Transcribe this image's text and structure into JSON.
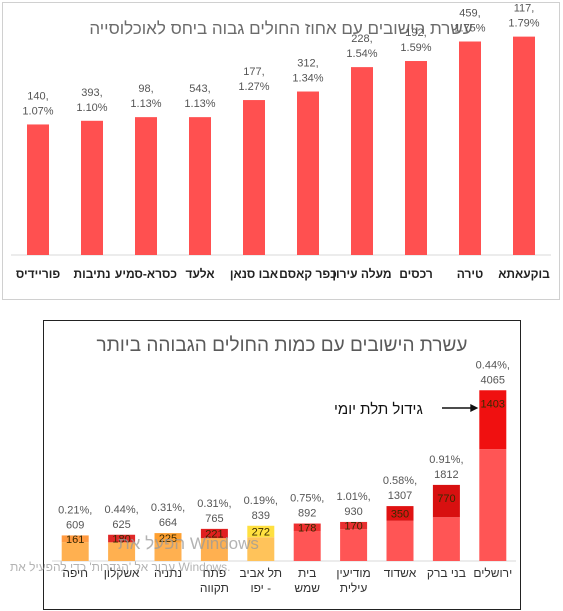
{
  "charts": [
    {
      "type": "bar",
      "title": "עשרת הישובים עם אחוז החולים גבוה ביחס לאוכלוסייה",
      "categories": [
        "בוקעאתא",
        "טירה",
        "רכסים",
        "מעלה עירון",
        "כפר קאסם",
        "אבו סנאן",
        "אלעד",
        "כסרא-סמיע",
        "נתיבות",
        "פוריידיס"
      ],
      "values": [
        1.79,
        1.75,
        1.59,
        1.54,
        1.34,
        1.27,
        1.13,
        1.13,
        1.1,
        1.07
      ],
      "counts": [
        117,
        459,
        192,
        228,
        312,
        177,
        543,
        98,
        393,
        140
      ],
      "labels_count": [
        "117,",
        "459,",
        "192,",
        "228,",
        "312,",
        "177,",
        "543,",
        "98,",
        "393,",
        "140,"
      ],
      "labels_pct": [
        "1.79%",
        "1.75%",
        "1.59%",
        "1.54%",
        "1.34%",
        "1.27%",
        "1.13%",
        "1.13%",
        "1.10%",
        "1.07%"
      ],
      "colors": {
        "bar": "#ff5050",
        "axis": "#d9d9d9"
      }
    },
    {
      "type": "bar",
      "stacked": true,
      "title": "עשרת הישובים עם כמות החולים הגבוהה ביותר",
      "categories": [
        "ירושלים",
        "בני ברק",
        "אשדוד",
        "מודיעין עילית",
        "בית שמש",
        "תל אביב - יפו",
        "פתח תקווה",
        "נתניה",
        "אשקלון",
        "חיפה"
      ],
      "category_lines": [
        [
          "ירושלים"
        ],
        [
          "בני ברק"
        ],
        [
          "אשדוד"
        ],
        [
          "מודיעין",
          "עילית"
        ],
        [
          "בית",
          "שמש"
        ],
        [
          "תל אביב",
          "- יפו"
        ],
        [
          "פתח",
          "תקווה"
        ],
        [
          "נתניה"
        ],
        [
          "אשקלון"
        ],
        [
          "חיפה"
        ]
      ],
      "totals": [
        4065,
        1812,
        1307,
        930,
        892,
        839,
        765,
        664,
        625,
        609
      ],
      "labels_pct": [
        "0.44%,",
        "0.91%,",
        "0.58%,",
        "1.01%,",
        "0.75%,",
        "0.19%,",
        "0.31%,",
        "0.31%,",
        "0.44%,",
        "0.21%,"
      ],
      "labels_total": [
        "4065",
        "1812",
        "1307",
        "930",
        "892",
        "839",
        "765",
        "664",
        "625",
        "609"
      ],
      "segment": [
        1403,
        770,
        350,
        170,
        178,
        272,
        221,
        225,
        180,
        161
      ],
      "segment_labels": [
        "1403",
        "770",
        "350",
        "170",
        "178",
        "272",
        "221",
        "225",
        "180",
        "161"
      ],
      "annotation": "גידול תלת יומי",
      "colors": {
        "base": [
          "#ff5555",
          "#ff5555",
          "#ff5555",
          "#ff5555",
          "#ff5555",
          "#ffc35a",
          "#ffb050",
          "#ffb050",
          "#ffb050",
          "#ffb050"
        ],
        "top": [
          "#f01010",
          "#d81010",
          "#e01212",
          "#e83030",
          "#ee3030",
          "#ffe040",
          "#e02020",
          "#ffa030",
          "#e02828",
          "#ff9a40"
        ],
        "axis": "#d9d9d9"
      }
    }
  ],
  "watermark": {
    "line1": "הפעל את Windows",
    "line2": "עבור אל 'הגדרות' כדי להפעיל את Windows."
  }
}
